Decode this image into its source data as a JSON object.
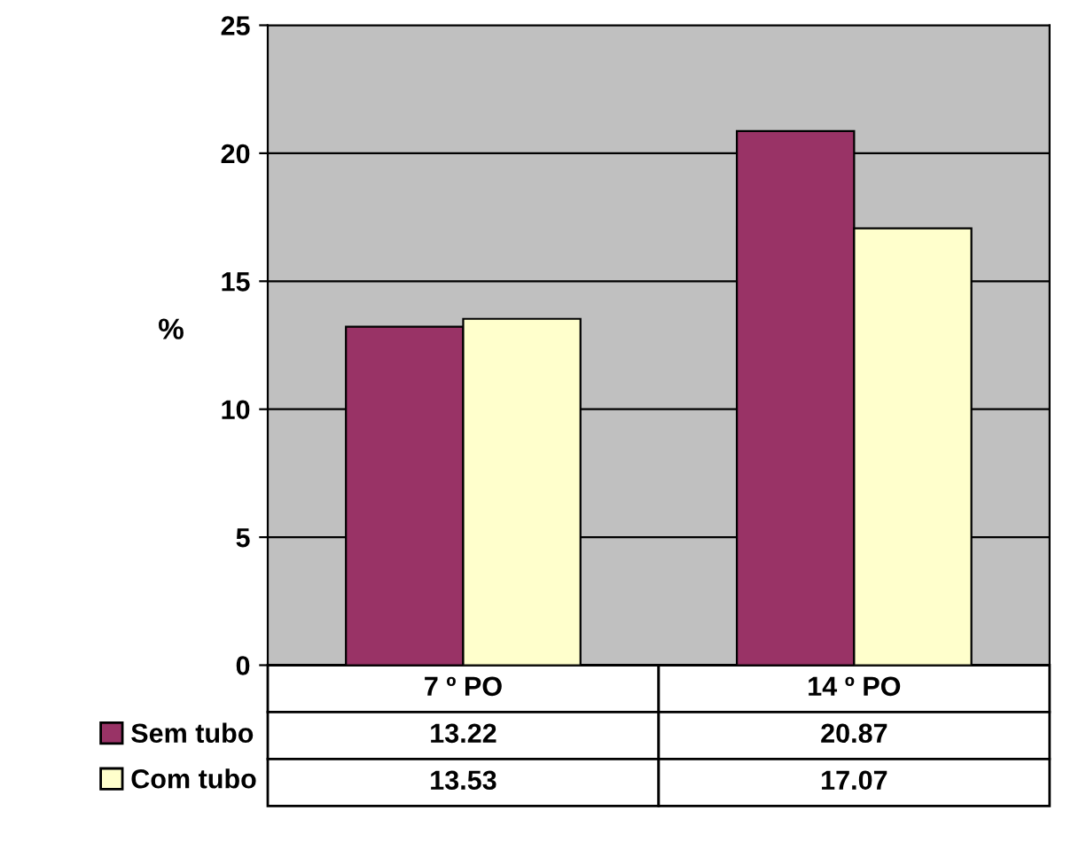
{
  "chart_data": {
    "type": "bar",
    "ylabel": "%",
    "categories": [
      "7 º PO",
      "14 º PO"
    ],
    "series": [
      {
        "name": "Sem tubo",
        "color": "#993366",
        "values": [
          13.22,
          20.87
        ]
      },
      {
        "name": "Com tubo",
        "color": "#ffffcc",
        "values": [
          13.53,
          17.07
        ]
      }
    ],
    "ylim": [
      0,
      25
    ],
    "yticks": [
      0,
      5,
      10,
      15,
      20,
      25
    ],
    "grid": "y",
    "legend": "bottom left",
    "data_labels": true
  }
}
